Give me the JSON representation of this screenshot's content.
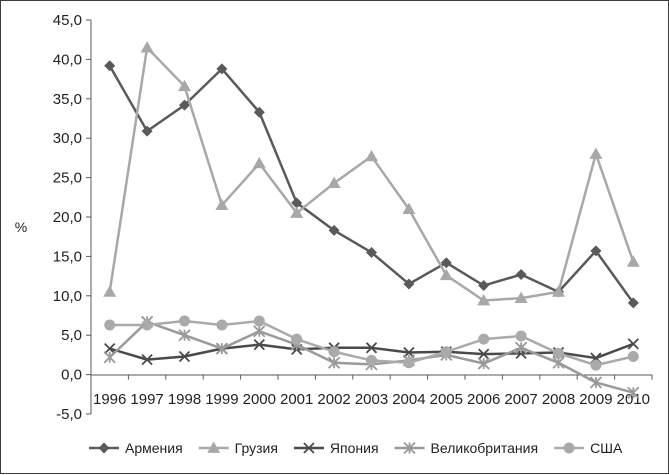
{
  "chart_data": {
    "type": "line",
    "title": "",
    "xlabel": "",
    "ylabel": "%",
    "ylim": [
      -5,
      45
    ],
    "ytick_step": 5,
    "ytick_labels": [
      "-5,0",
      "0,0",
      "5,0",
      "10,0",
      "15,0",
      "20,0",
      "25,0",
      "30,0",
      "35,0",
      "40,0",
      "45,0"
    ],
    "x": [
      "1996",
      "1997",
      "1998",
      "1999",
      "2000",
      "2001",
      "2002",
      "2003",
      "2004",
      "2005",
      "2006",
      "2007",
      "2008",
      "2009",
      "2010"
    ],
    "grid": false,
    "legend_position": "bottom",
    "series": [
      {
        "name": "Армения",
        "color": "#5a5a5a",
        "marker": "diamond",
        "values": [
          39.2,
          30.9,
          34.2,
          38.8,
          33.3,
          21.8,
          18.3,
          15.5,
          11.5,
          14.2,
          11.3,
          12.7,
          10.5,
          15.7,
          9.1
        ]
      },
      {
        "name": "Грузия",
        "color": "#a8a8a8",
        "marker": "triangle",
        "values": [
          10.5,
          41.5,
          36.6,
          21.5,
          26.8,
          20.5,
          24.3,
          27.7,
          21.0,
          12.6,
          9.4,
          9.7,
          10.5,
          28.0,
          14.3
        ]
      },
      {
        "name": "Япония",
        "color": "#4a4a4a",
        "marker": "x",
        "values": [
          3.3,
          1.9,
          2.3,
          3.3,
          3.8,
          3.2,
          3.4,
          3.4,
          2.8,
          2.9,
          2.6,
          2.7,
          2.8,
          2.1,
          3.9
        ]
      },
      {
        "name": "Великобритания",
        "color": "#9a9a9a",
        "marker": "star",
        "values": [
          2.2,
          6.7,
          5.0,
          3.3,
          5.5,
          3.8,
          1.5,
          1.3,
          1.8,
          2.5,
          1.4,
          3.4,
          1.5,
          -1.0,
          -2.3
        ]
      },
      {
        "name": "США",
        "color": "#aaaaaa",
        "marker": "circle",
        "values": [
          6.3,
          6.3,
          6.8,
          6.3,
          6.8,
          4.5,
          2.9,
          1.8,
          1.5,
          2.9,
          4.5,
          4.9,
          2.7,
          1.2,
          2.3
        ]
      }
    ]
  }
}
